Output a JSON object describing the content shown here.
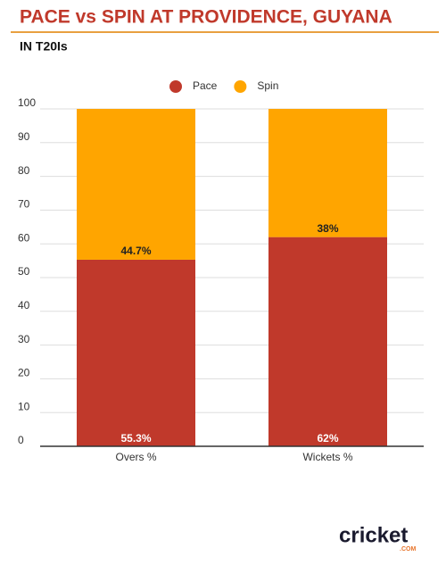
{
  "chart_data": {
    "type": "stacked_bar",
    "title": "PACE vs SPIN AT PROVIDENCE, GUYANA",
    "subtitle": "IN T20Is",
    "categories": [
      "Overs %",
      "Wickets %"
    ],
    "series": [
      {
        "name": "Pace",
        "color": "#c0392b",
        "values": [
          55.3,
          62
        ],
        "value_labels": [
          "55.3%",
          "62%"
        ]
      },
      {
        "name": "Spin",
        "color": "#ffa500",
        "values": [
          44.7,
          38
        ],
        "value_labels": [
          "44.7%",
          "38%"
        ]
      }
    ],
    "ylim": [
      0,
      100
    ],
    "yticks": [
      0,
      10,
      20,
      30,
      40,
      50,
      60,
      70,
      80,
      90,
      100
    ],
    "grid": true,
    "legend": "top",
    "brand": "cricket",
    "brand_suffix": ".COM"
  }
}
